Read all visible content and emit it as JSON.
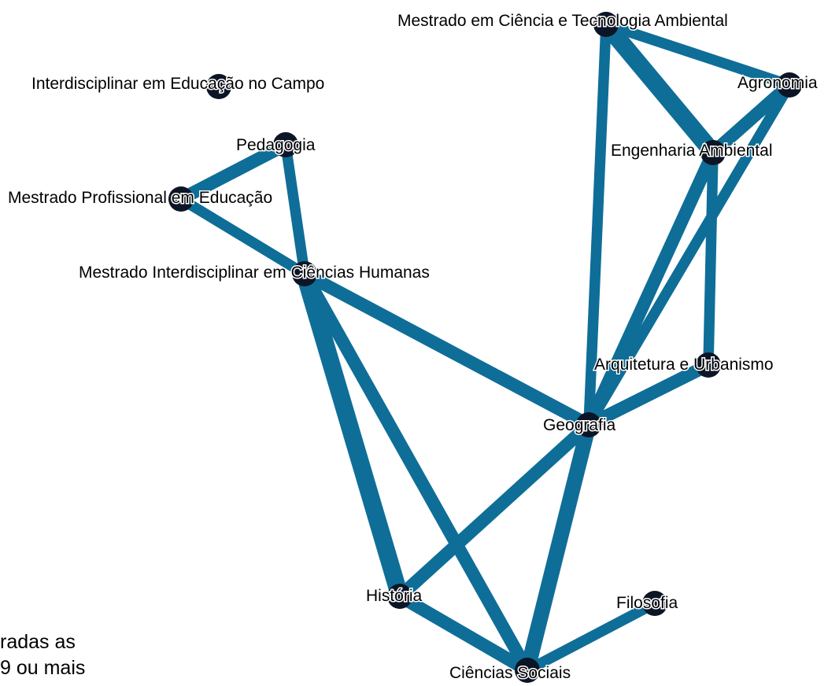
{
  "colors": {
    "edge": "#0e6e98",
    "node": "#0c1526",
    "label_outline": "#ffffff"
  },
  "caption": {
    "line1": "radas as",
    "line2": "9 ou mais"
  },
  "nodes": [
    {
      "id": "mcta",
      "label": "Mestrado em Ciência e Tecnologia Ambiental"
    },
    {
      "id": "iec",
      "label": "Interdisciplinar em Educação no Campo"
    },
    {
      "id": "agro",
      "label": "Agronomia"
    },
    {
      "id": "ped",
      "label": "Pedagogia"
    },
    {
      "id": "eamb",
      "label": "Engenharia Ambiental"
    },
    {
      "id": "mpe",
      "label": "Mestrado Profissional em Educação"
    },
    {
      "id": "mich",
      "label": "Mestrado Interdisciplinar em Ciências Humanas"
    },
    {
      "id": "arq",
      "label": "Arquitetura e Urbanismo"
    },
    {
      "id": "geo",
      "label": "Geografia"
    },
    {
      "id": "hist",
      "label": "História"
    },
    {
      "id": "filo",
      "label": "Filosofia"
    },
    {
      "id": "cs",
      "label": "Ciências Sociais"
    }
  ],
  "edges": [
    {
      "source": "mcta",
      "target": "agro",
      "weight": 9
    },
    {
      "source": "mcta",
      "target": "eamb",
      "weight": 15
    },
    {
      "source": "mcta",
      "target": "geo",
      "weight": 9
    },
    {
      "source": "agro",
      "target": "eamb",
      "weight": 11
    },
    {
      "source": "agro",
      "target": "geo",
      "weight": 9
    },
    {
      "source": "eamb",
      "target": "geo",
      "weight": 11
    },
    {
      "source": "eamb",
      "target": "arq",
      "weight": 9
    },
    {
      "source": "arq",
      "target": "geo",
      "weight": 11
    },
    {
      "source": "ped",
      "target": "mpe",
      "weight": 11
    },
    {
      "source": "ped",
      "target": "mich",
      "weight": 9
    },
    {
      "source": "mpe",
      "target": "mich",
      "weight": 9
    },
    {
      "source": "mich",
      "target": "geo",
      "weight": 11
    },
    {
      "source": "mich",
      "target": "hist",
      "weight": 15
    },
    {
      "source": "mich",
      "target": "cs",
      "weight": 11
    },
    {
      "source": "geo",
      "target": "hist",
      "weight": 11
    },
    {
      "source": "geo",
      "target": "cs",
      "weight": 13
    },
    {
      "source": "hist",
      "target": "cs",
      "weight": 11
    },
    {
      "source": "filo",
      "target": "cs",
      "weight": 9
    }
  ]
}
